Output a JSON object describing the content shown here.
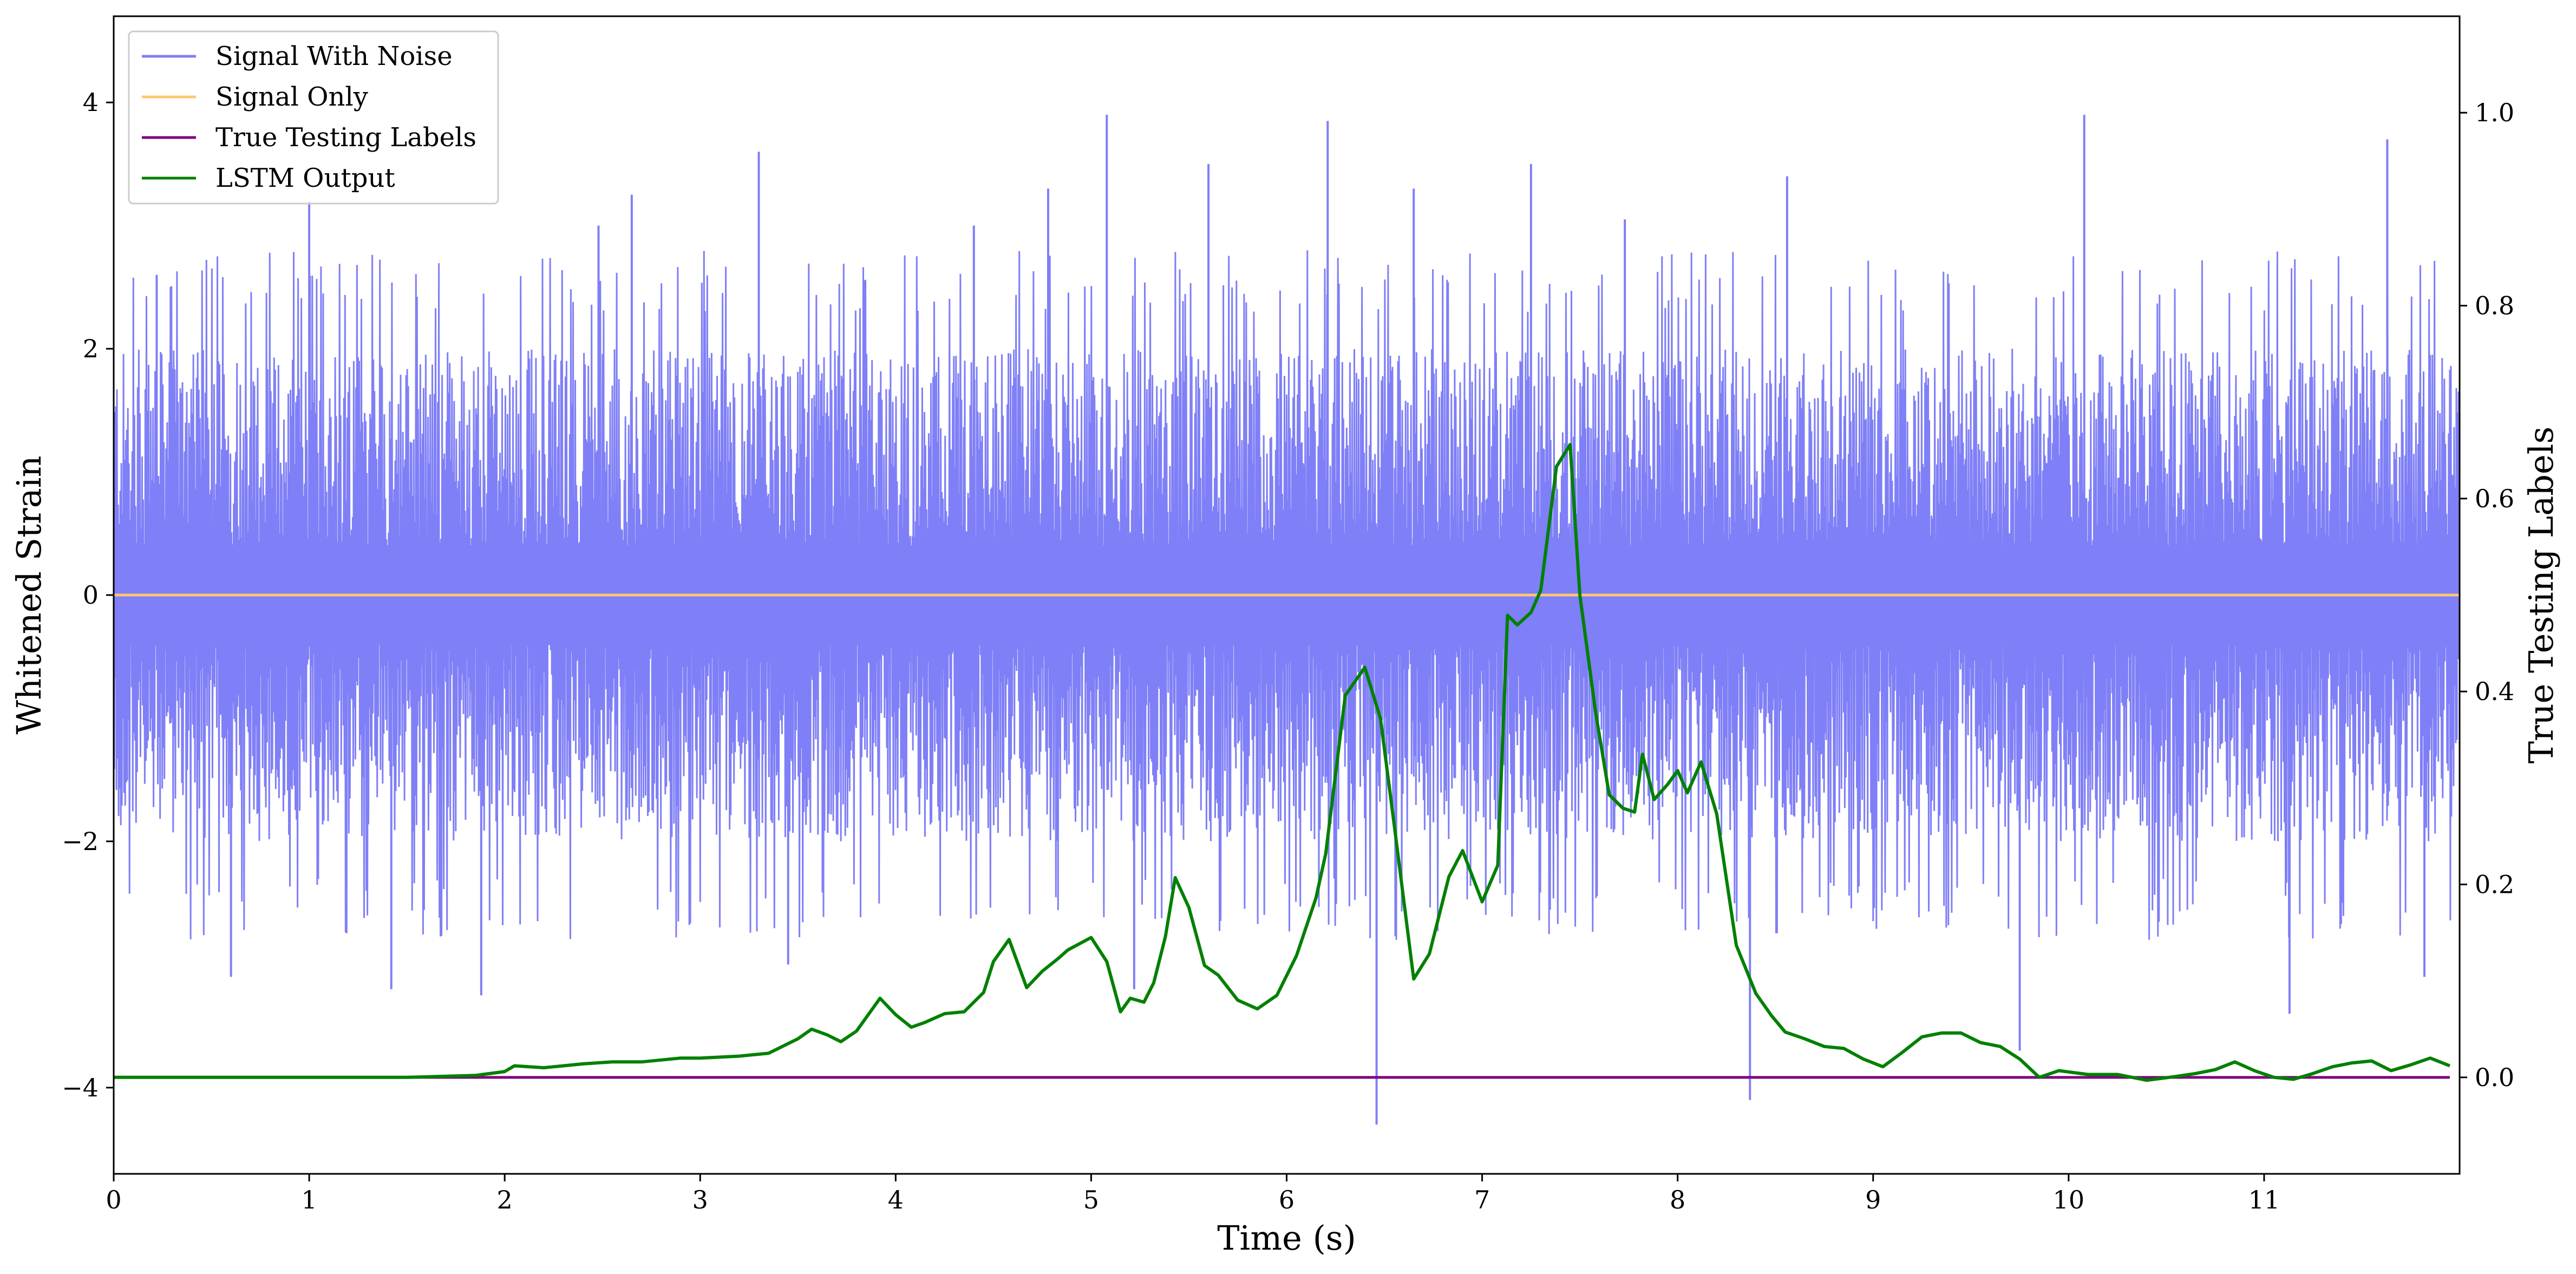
{
  "chart_data": {
    "type": "line",
    "xlabel": "Time (s)",
    "ylabel_left": "Whitened Strain",
    "ylabel_right": "True Testing Labels",
    "xlim": [
      0,
      12
    ],
    "ylim_left": [
      -4.7,
      4.7
    ],
    "ylim_right": [
      -0.1,
      1.1
    ],
    "x_ticks": [
      0,
      1,
      2,
      3,
      4,
      5,
      6,
      7,
      8,
      9,
      10,
      11
    ],
    "y_left_ticks": [
      -4,
      -2,
      0,
      2,
      4
    ],
    "y_left_tick_labels": [
      "−4",
      "−2",
      "0",
      "2",
      "4"
    ],
    "y_right_ticks": [
      0.0,
      0.2,
      0.4,
      0.6,
      0.8,
      1.0
    ],
    "y_right_tick_labels": [
      "0.0",
      "0.2",
      "0.4",
      "0.6",
      "0.8",
      "1.0"
    ],
    "grid": false,
    "legend_position": "top-left",
    "colors": {
      "signal_with_noise": "#7f7ff7",
      "signal_only": "#ffc870",
      "true_labels": "#800080",
      "lstm_output": "#008000"
    },
    "series": [
      {
        "name": "Signal With Noise",
        "axis": "left",
        "note_type": "noise band",
        "envelope_upper": 2.6,
        "envelope_lower": -2.6,
        "spikes": [
          {
            "x": 0.22,
            "y": 2.6
          },
          {
            "x": 0.6,
            "y": -3.1
          },
          {
            "x": 1.0,
            "y": 3.2
          },
          {
            "x": 1.42,
            "y": -3.2
          },
          {
            "x": 1.88,
            "y": -3.25
          },
          {
            "x": 2.48,
            "y": 3.0
          },
          {
            "x": 2.65,
            "y": 3.25
          },
          {
            "x": 3.3,
            "y": 3.6
          },
          {
            "x": 3.45,
            "y": -3.0
          },
          {
            "x": 4.4,
            "y": 3.0
          },
          {
            "x": 4.78,
            "y": 3.3
          },
          {
            "x": 5.08,
            "y": 3.9
          },
          {
            "x": 5.22,
            "y": -3.2
          },
          {
            "x": 5.6,
            "y": 3.5
          },
          {
            "x": 6.21,
            "y": 3.85
          },
          {
            "x": 6.46,
            "y": -4.3
          },
          {
            "x": 6.65,
            "y": 3.3
          },
          {
            "x": 7.25,
            "y": 3.5
          },
          {
            "x": 7.73,
            "y": 3.05
          },
          {
            "x": 8.37,
            "y": -4.1
          },
          {
            "x": 8.56,
            "y": 3.4
          },
          {
            "x": 9.75,
            "y": -3.7
          },
          {
            "x": 10.08,
            "y": 3.9
          },
          {
            "x": 11.13,
            "y": -3.4
          },
          {
            "x": 11.63,
            "y": 3.7
          },
          {
            "x": 11.82,
            "y": -3.1
          }
        ]
      },
      {
        "name": "Signal Only",
        "axis": "left",
        "x": [
          0,
          12
        ],
        "y": [
          0,
          0
        ]
      },
      {
        "name": "True Testing Labels",
        "axis": "right",
        "x": [
          0,
          11.95
        ],
        "y": [
          0,
          0
        ]
      },
      {
        "name": "LSTM Output",
        "axis": "right",
        "x": [
          0,
          0.5,
          1.0,
          1.5,
          1.85,
          2.0,
          2.05,
          2.2,
          2.3,
          2.4,
          2.55,
          2.7,
          2.9,
          3.0,
          3.2,
          3.35,
          3.5,
          3.57,
          3.65,
          3.72,
          3.8,
          3.92,
          4.0,
          4.08,
          4.15,
          4.25,
          4.35,
          4.45,
          4.5,
          4.58,
          4.67,
          4.75,
          4.83,
          4.88,
          5.0,
          5.08,
          5.15,
          5.2,
          5.27,
          5.32,
          5.38,
          5.43,
          5.5,
          5.58,
          5.65,
          5.75,
          5.85,
          5.95,
          6.05,
          6.15,
          6.2,
          6.3,
          6.4,
          6.48,
          6.55,
          6.65,
          6.73,
          6.83,
          6.9,
          7.0,
          7.08,
          7.13,
          7.18,
          7.25,
          7.3,
          7.38,
          7.45,
          7.5,
          7.58,
          7.65,
          7.72,
          7.78,
          7.82,
          7.88,
          7.95,
          8.0,
          8.05,
          8.12,
          8.2,
          8.3,
          8.4,
          8.48,
          8.55,
          8.65,
          8.75,
          8.85,
          8.95,
          9.05,
          9.15,
          9.25,
          9.35,
          9.45,
          9.55,
          9.65,
          9.75,
          9.85,
          9.95,
          10.1,
          10.25,
          10.4,
          10.55,
          10.65,
          10.75,
          10.85,
          10.95,
          11.05,
          11.15,
          11.25,
          11.35,
          11.45,
          11.55,
          11.65,
          11.75,
          11.85,
          11.95
        ],
        "y": [
          0,
          0,
          0,
          0,
          0.002,
          0.006,
          0.012,
          0.01,
          0.012,
          0.014,
          0.016,
          0.016,
          0.02,
          0.02,
          0.022,
          0.025,
          0.04,
          0.05,
          0.044,
          0.037,
          0.048,
          0.082,
          0.065,
          0.052,
          0.057,
          0.066,
          0.068,
          0.088,
          0.12,
          0.143,
          0.093,
          0.11,
          0.123,
          0.132,
          0.145,
          0.12,
          0.068,
          0.082,
          0.078,
          0.098,
          0.146,
          0.207,
          0.176,
          0.116,
          0.106,
          0.08,
          0.071,
          0.085,
          0.126,
          0.186,
          0.232,
          0.396,
          0.425,
          0.372,
          0.262,
          0.102,
          0.128,
          0.208,
          0.235,
          0.182,
          0.22,
          0.479,
          0.469,
          0.482,
          0.505,
          0.633,
          0.656,
          0.5,
          0.379,
          0.293,
          0.279,
          0.275,
          0.335,
          0.288,
          0.304,
          0.318,
          0.295,
          0.327,
          0.273,
          0.137,
          0.087,
          0.064,
          0.047,
          0.04,
          0.032,
          0.03,
          0.019,
          0.011,
          0.026,
          0.042,
          0.046,
          0.046,
          0.036,
          0.032,
          0.019,
          0.0,
          0.007,
          0.003,
          0.003,
          -0.003,
          0.001,
          0.004,
          0.008,
          0.016,
          0.007,
          0.0,
          -0.002,
          0.004,
          0.011,
          0.015,
          0.017,
          0.007,
          0.013,
          0.02,
          0.012
        ]
      }
    ]
  }
}
